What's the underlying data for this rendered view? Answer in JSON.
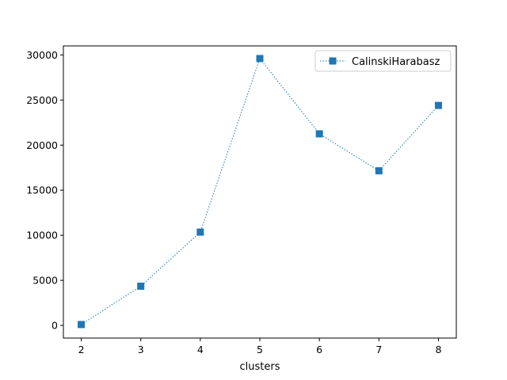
{
  "chart_data": {
    "type": "line",
    "title": "",
    "xlabel": "clusters",
    "ylabel": "",
    "x": [
      2,
      3,
      4,
      5,
      6,
      7,
      8
    ],
    "xlim": [
      1.7,
      8.3
    ],
    "ylim": [
      -1400,
      31000
    ],
    "xticks": [
      "2",
      "3",
      "4",
      "5",
      "6",
      "7",
      "8"
    ],
    "yticks": [
      "0",
      "5000",
      "10000",
      "15000",
      "20000",
      "25000",
      "30000"
    ],
    "grid": false,
    "legend_position": "top-right",
    "series": [
      {
        "name": "CalinskiHarabasz",
        "color": "#1f77b4",
        "line_style": "dotted",
        "marker": "square",
        "values": [
          100,
          4350,
          10350,
          29600,
          21250,
          17150,
          24400
        ]
      }
    ]
  }
}
